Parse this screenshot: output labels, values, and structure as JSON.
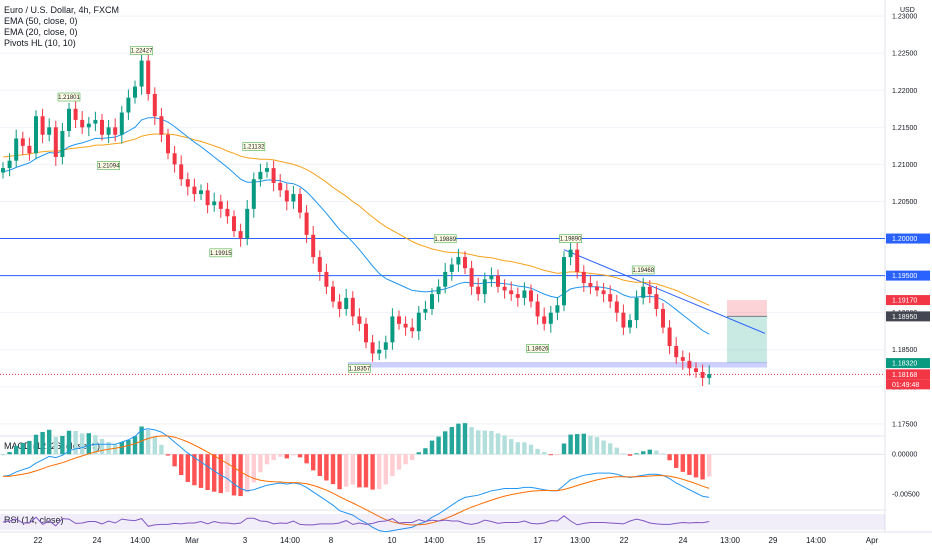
{
  "legend": {
    "symbol": "Euro / U.S. Dollar, 4h, FXCM",
    "indicators": [
      "EMA (50, close, 0)",
      "EMA (20, close, 0)",
      "Pivots HL (10, 10)"
    ],
    "macd": "MACD (12, 26, close, 9)",
    "rsi": "RSI (14, close)"
  },
  "axis": {
    "currency": "USD",
    "ticks": [
      "1.23000",
      "1.22500",
      "1.22000",
      "1.21500",
      "1.21000",
      "1.20500",
      "1.20000",
      "1.19500",
      "1.19000",
      "1.18500",
      "1.18000",
      "1.17500"
    ],
    "macd_ticks": [
      "0.00000",
      "-0.00500"
    ]
  },
  "time_labels": [
    "22",
    "24",
    "14:00",
    "Mar",
    "3",
    "14:00",
    "8",
    "10",
    "14:00",
    "15",
    "17",
    "13:00",
    "22",
    "24",
    "13:00",
    "29",
    "14:00",
    "Apr"
  ],
  "price_tags": [
    {
      "value": "1.20000",
      "color": "#2962ff"
    },
    {
      "value": "1.19500",
      "color": "#2962ff"
    },
    {
      "value": "1.19170",
      "color": "#f23645"
    },
    {
      "value": "1.18950",
      "color": "#434651"
    },
    {
      "value": "1.18320",
      "color": "#089981"
    },
    {
      "value": "1.18168",
      "color": "#f23645"
    }
  ],
  "countdown": "01:49:48",
  "pivot_labels": [
    "1.22427",
    "1.21801",
    "1.21094",
    "1.21132",
    "1.19915",
    "1.19889",
    "1.19890",
    "1.19468",
    "1.18626",
    "1.18357"
  ],
  "chart_data": {
    "type": "candlestick",
    "symbol": "Euro / U.S. Dollar",
    "timeframe": "4h",
    "source": "FXCM",
    "ylim": [
      1.1735,
      1.2315
    ],
    "horizontal_lines": [
      1.2,
      1.195
    ],
    "last_price": 1.18168,
    "pivots": [
      {
        "type": "high",
        "value": 1.22427,
        "label": "1.22427"
      },
      {
        "type": "high",
        "value": 1.21801,
        "label": "1.21801"
      },
      {
        "type": "low",
        "value": 1.21094,
        "label": "1.21094"
      },
      {
        "type": "high",
        "value": 1.21132,
        "label": "1.21132"
      },
      {
        "type": "low",
        "value": 1.19915,
        "label": "1.19915"
      },
      {
        "type": "high",
        "value": 1.19889,
        "label": "1.19889"
      },
      {
        "type": "high",
        "value": 1.1989,
        "label": "1.19890"
      },
      {
        "type": "high",
        "value": 1.19468,
        "label": "1.19468"
      },
      {
        "type": "low",
        "value": 1.18626,
        "label": "1.18626"
      },
      {
        "type": "low",
        "value": 1.18357,
        "label": "1.18357"
      }
    ],
    "close": [
      1.2095,
      1.2105,
      1.2135,
      1.2125,
      1.2115,
      1.2165,
      1.214,
      1.215,
      1.211,
      1.2145,
      1.2175,
      1.216,
      1.215,
      1.2155,
      1.216,
      1.214,
      1.215,
      1.214,
      1.217,
      1.219,
      1.2205,
      1.224,
      1.2195,
      1.2165,
      1.214,
      1.2115,
      1.21,
      1.208,
      1.207,
      1.206,
      1.2065,
      1.2045,
      1.205,
      1.204,
      1.203,
      1.201,
      1.2,
      1.204,
      1.208,
      1.209,
      1.2095,
      1.2075,
      1.2065,
      1.205,
      1.206,
      1.2035,
      1.2005,
      1.1975,
      1.1955,
      1.1935,
      1.1915,
      1.1905,
      1.192,
      1.1895,
      1.1885,
      1.186,
      1.1845,
      1.185,
      1.186,
      1.1895,
      1.1885,
      1.188,
      1.1875,
      1.19,
      1.1905,
      1.1925,
      1.1935,
      1.1955,
      1.1965,
      1.1975,
      1.196,
      1.1935,
      1.1925,
      1.1945,
      1.195,
      1.1935,
      1.193,
      1.1925,
      1.192,
      1.193,
      1.1915,
      1.1895,
      1.1885,
      1.19,
      1.191,
      1.1975,
      1.1985,
      1.1955,
      1.194,
      1.1935,
      1.193,
      1.1925,
      1.1915,
      1.19,
      1.188,
      1.189,
      1.192,
      1.1935,
      1.1925,
      1.1905,
      1.188,
      1.1855,
      1.184,
      1.1835,
      1.1825,
      1.182,
      1.1812,
      1.1817
    ],
    "ema20": [
      1.209,
      1.2092,
      1.2096,
      1.2099,
      1.2102,
      1.2108,
      1.2112,
      1.2116,
      1.2115,
      1.2118,
      1.2124,
      1.2127,
      1.2129,
      1.2132,
      1.2135,
      1.2135,
      1.2136,
      1.2137,
      1.214,
      1.2145,
      1.215,
      1.216,
      1.2163,
      1.2163,
      1.2161,
      1.2157,
      1.2151,
      1.2144,
      1.2137,
      1.213,
      1.2124,
      1.2117,
      1.211,
      1.2103,
      1.2096,
      1.2088,
      1.208,
      1.2076,
      1.2076,
      1.2077,
      1.2079,
      1.2079,
      1.2078,
      1.2075,
      1.2074,
      1.207,
      1.2063,
      1.2054,
      1.2044,
      1.2034,
      1.2023,
      1.2012,
      1.2004,
      1.1995,
      1.1985,
      1.1974,
      1.1963,
      1.1953,
      1.1946,
      1.1942,
      1.1938,
      1.1934,
      1.193,
      1.1929,
      1.1928,
      1.1929,
      1.193,
      1.1932,
      1.1935,
      1.1939,
      1.1941,
      1.194,
      1.1939,
      1.194,
      1.1941,
      1.194,
      1.1939,
      1.1938,
      1.1936,
      1.1935,
      1.1933,
      1.1929,
      1.1925,
      1.1922,
      1.192,
      1.1926,
      1.1932,
      1.1934,
      1.1935,
      1.1935,
      1.1935,
      1.1934,
      1.1932,
      1.1929,
      1.1924,
      1.1921,
      1.1921,
      1.1922,
      1.1922,
      1.1921,
      1.1917,
      1.1911,
      1.1904,
      1.1897,
      1.189,
      1.1883,
      1.1876,
      1.1871
    ],
    "ema50": [
      1.211,
      1.2111,
      1.2112,
      1.2113,
      1.2114,
      1.2116,
      1.2117,
      1.2118,
      1.2118,
      1.2119,
      1.2121,
      1.2122,
      1.2123,
      1.2124,
      1.2126,
      1.2126,
      1.2127,
      1.2128,
      1.2129,
      1.2132,
      1.2134,
      1.2138,
      1.214,
      1.2141,
      1.2141,
      1.2141,
      1.214,
      1.2138,
      1.2136,
      1.2133,
      1.2131,
      1.2128,
      1.2125,
      1.2122,
      1.2118,
      1.2115,
      1.2111,
      1.2109,
      1.2108,
      1.2107,
      1.2107,
      1.2106,
      1.2104,
      1.2102,
      1.21,
      1.2097,
      1.2093,
      1.2088,
      1.2082,
      1.2076,
      1.2069,
      1.2063,
      1.2057,
      1.205,
      1.2044,
      1.2036,
      1.2029,
      1.2022,
      1.2016,
      1.2011,
      1.2006,
      1.2001,
      1.1996,
      1.1992,
      1.1989,
      1.1986,
      1.1984,
      1.1982,
      1.1981,
      1.1981,
      1.198,
      1.1978,
      1.1976,
      1.1975,
      1.1974,
      1.1972,
      1.197,
      1.1969,
      1.1967,
      1.1965,
      1.1963,
      1.196,
      1.1957,
      1.1955,
      1.1953,
      1.1954,
      1.1955,
      1.1955,
      1.1954,
      1.1953,
      1.1952,
      1.1951,
      1.1949,
      1.1947,
      1.1944,
      1.1942,
      1.1941,
      1.1941,
      1.194,
      1.1939,
      1.1936,
      1.1933,
      1.193,
      1.1926,
      1.1922,
      1.1918,
      1.1914,
      1.191
    ],
    "trade_zone": {
      "entry": 1.1895,
      "stop": 1.1917,
      "target": 1.1832
    },
    "macd": {
      "ylim": [
        -0.0068,
        0.0018
      ]
    },
    "rsi": {
      "ylim": [
        0,
        100
      ]
    }
  }
}
